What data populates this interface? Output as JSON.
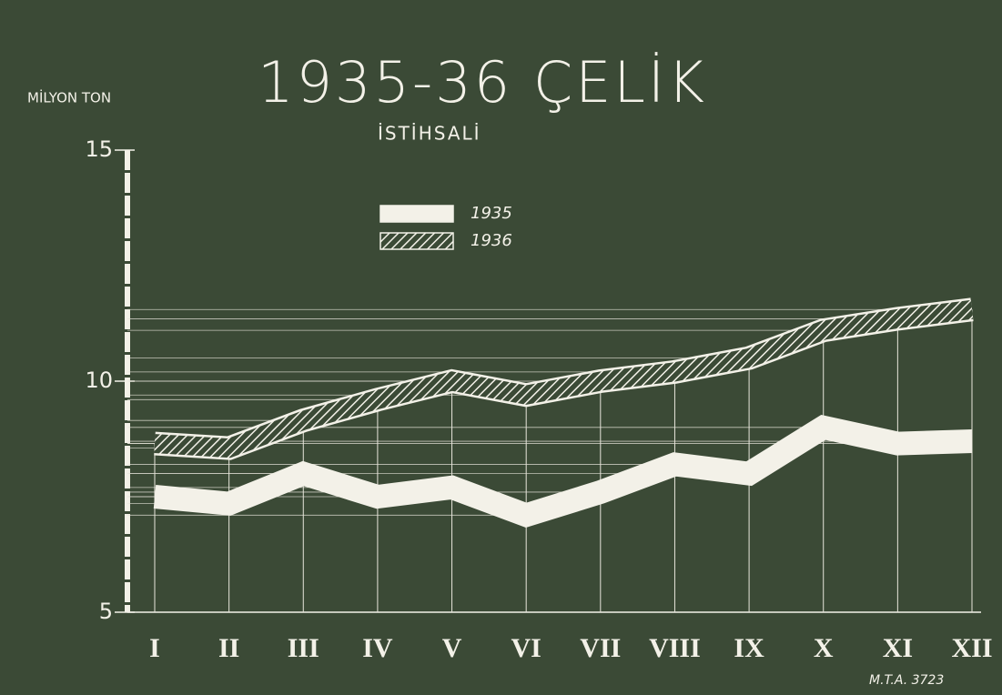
{
  "chart_data": {
    "type": "line",
    "title": "1935-36 ÇELİK",
    "subtitle": "İSTİHSALİ",
    "y_label": "MİLYON TON",
    "annotation": "M.T.A. 3723",
    "categories": [
      "I",
      "II",
      "III",
      "IV",
      "V",
      "VI",
      "VII",
      "VIII",
      "IX",
      "X",
      "XI",
      "XII"
    ],
    "series": [
      {
        "name": "1935",
        "color": "#f3f1e8",
        "hatch": false,
        "values": [
          7.5,
          7.35,
          8.0,
          7.5,
          7.7,
          7.1,
          7.6,
          8.2,
          8.0,
          9.0,
          8.65,
          8.7
        ]
      },
      {
        "name": "1936",
        "color": "#f3f1e8",
        "hatch": true,
        "values": [
          8.65,
          8.55,
          9.15,
          9.6,
          10.0,
          9.7,
          10.0,
          10.2,
          10.5,
          11.1,
          11.35,
          11.55
        ]
      }
    ],
    "ylim": [
      5,
      15
    ],
    "yticks": [
      5,
      10,
      15
    ],
    "grid": true
  }
}
